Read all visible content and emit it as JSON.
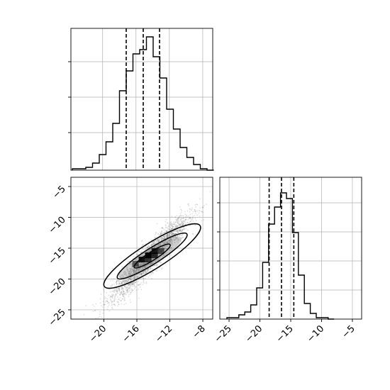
{
  "chart_data": [
    {
      "type": "histogram",
      "panel": "top-left",
      "x_range": [
        -23.8,
        -6.8
      ],
      "bin_width": 0.6,
      "heights": [
        0.01,
        0.01,
        0.02,
        0.05,
        0.11,
        0.2,
        0.33,
        0.56,
        0.7,
        0.82,
        0.85,
        0.94,
        0.8,
        0.65,
        0.43,
        0.29,
        0.16,
        0.09,
        0.04,
        0.01,
        0.0
      ],
      "y_ticks": 4,
      "quantiles": [
        -16.6,
        -14.4,
        -12.3
      ],
      "grid": true
    },
    {
      "type": "histogram",
      "panel": "bottom-right",
      "xlim": [
        -26.5,
        -3.5
      ],
      "bin_width": 0.95,
      "heights": [
        0.01,
        0.01,
        0.03,
        0.05,
        0.1,
        0.22,
        0.4,
        0.67,
        0.79,
        0.89,
        0.85,
        0.61,
        0.31,
        0.11,
        0.04,
        0.01,
        0.01,
        0.0
      ],
      "x_ticks": [
        -25,
        -20,
        -15,
        -10,
        -5
      ],
      "quantiles": [
        -18.5,
        -16.5,
        -14.5
      ],
      "grid": true
    },
    {
      "type": "scatter",
      "panel": "bottom-left",
      "xlim": [
        -24,
        -6.8
      ],
      "ylim": [
        -26.5,
        -3.5
      ],
      "x_ticks": [
        -20,
        -16,
        -12,
        -8
      ],
      "y_ticks": [
        -5,
        -10,
        -15,
        -20,
        -25
      ],
      "mean": [
        -14.4,
        -16.5
      ],
      "sd": [
        2.3,
        3.3
      ],
      "correlation": 0.93,
      "n_points": 3000,
      "grid": true
    }
  ],
  "colors": {
    "line": "#000000",
    "grid": "#b0b0b0",
    "points": "#555555",
    "density_high": "#000000",
    "density_mid": "#808080"
  }
}
